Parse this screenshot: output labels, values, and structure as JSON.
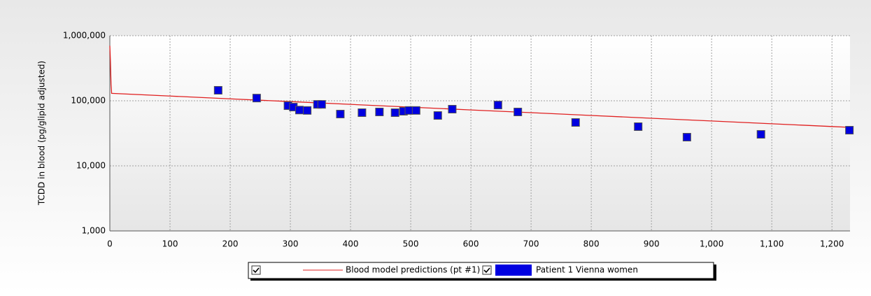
{
  "chart_data": {
    "type": "scatter",
    "ylabel": "TCDD in blood (pg/glipid adjusted)",
    "xlim": [
      0,
      1230
    ],
    "ylim": [
      1000,
      1000000
    ],
    "ylog": true,
    "grid": true,
    "xticks": [
      0,
      100,
      200,
      300,
      400,
      500,
      600,
      700,
      800,
      900,
      {
        "value": 1000,
        "label": "1,000"
      },
      {
        "value": 1100,
        "label": "1,100"
      },
      {
        "value": 1200,
        "label": "1,200"
      }
    ],
    "yticks": [
      {
        "value": 1000,
        "label": "1,000"
      },
      {
        "value": 10000,
        "label": "10,000"
      },
      {
        "value": 100000,
        "label": "100,000"
      },
      {
        "value": 1000000,
        "label": "1,000,000"
      }
    ],
    "series": [
      {
        "name": "Blood model predictions (pt #1)",
        "type": "line",
        "color": "#e02020",
        "x": [
          0,
          1,
          2,
          3,
          100,
          200,
          300,
          400,
          500,
          600,
          700,
          800,
          900,
          1000,
          1100,
          1200,
          1230
        ],
        "values": [
          700000,
          400000,
          180000,
          130000,
          118200,
          107100,
          97100,
          88000,
          79800,
          72300,
          65600,
          59500,
          53900,
          48900,
          44300,
          40200,
          39000
        ]
      },
      {
        "name": "Patient 1 Vienna women",
        "type": "scatter",
        "color": "#0000e0",
        "x": [
          180,
          244,
          296,
          305,
          315,
          328,
          345,
          352,
          383,
          419,
          448,
          474,
          488,
          497,
          509,
          545,
          569,
          645,
          678,
          774,
          878,
          959,
          1082,
          1229
        ],
        "values": [
          145000,
          110000,
          84000,
          80000,
          72000,
          71000,
          88000,
          88000,
          62500,
          65600,
          67300,
          65600,
          69000,
          71000,
          71000,
          59400,
          74300,
          86000,
          67300,
          46400,
          40000,
          27600,
          30500,
          35300
        ]
      }
    ]
  }
}
